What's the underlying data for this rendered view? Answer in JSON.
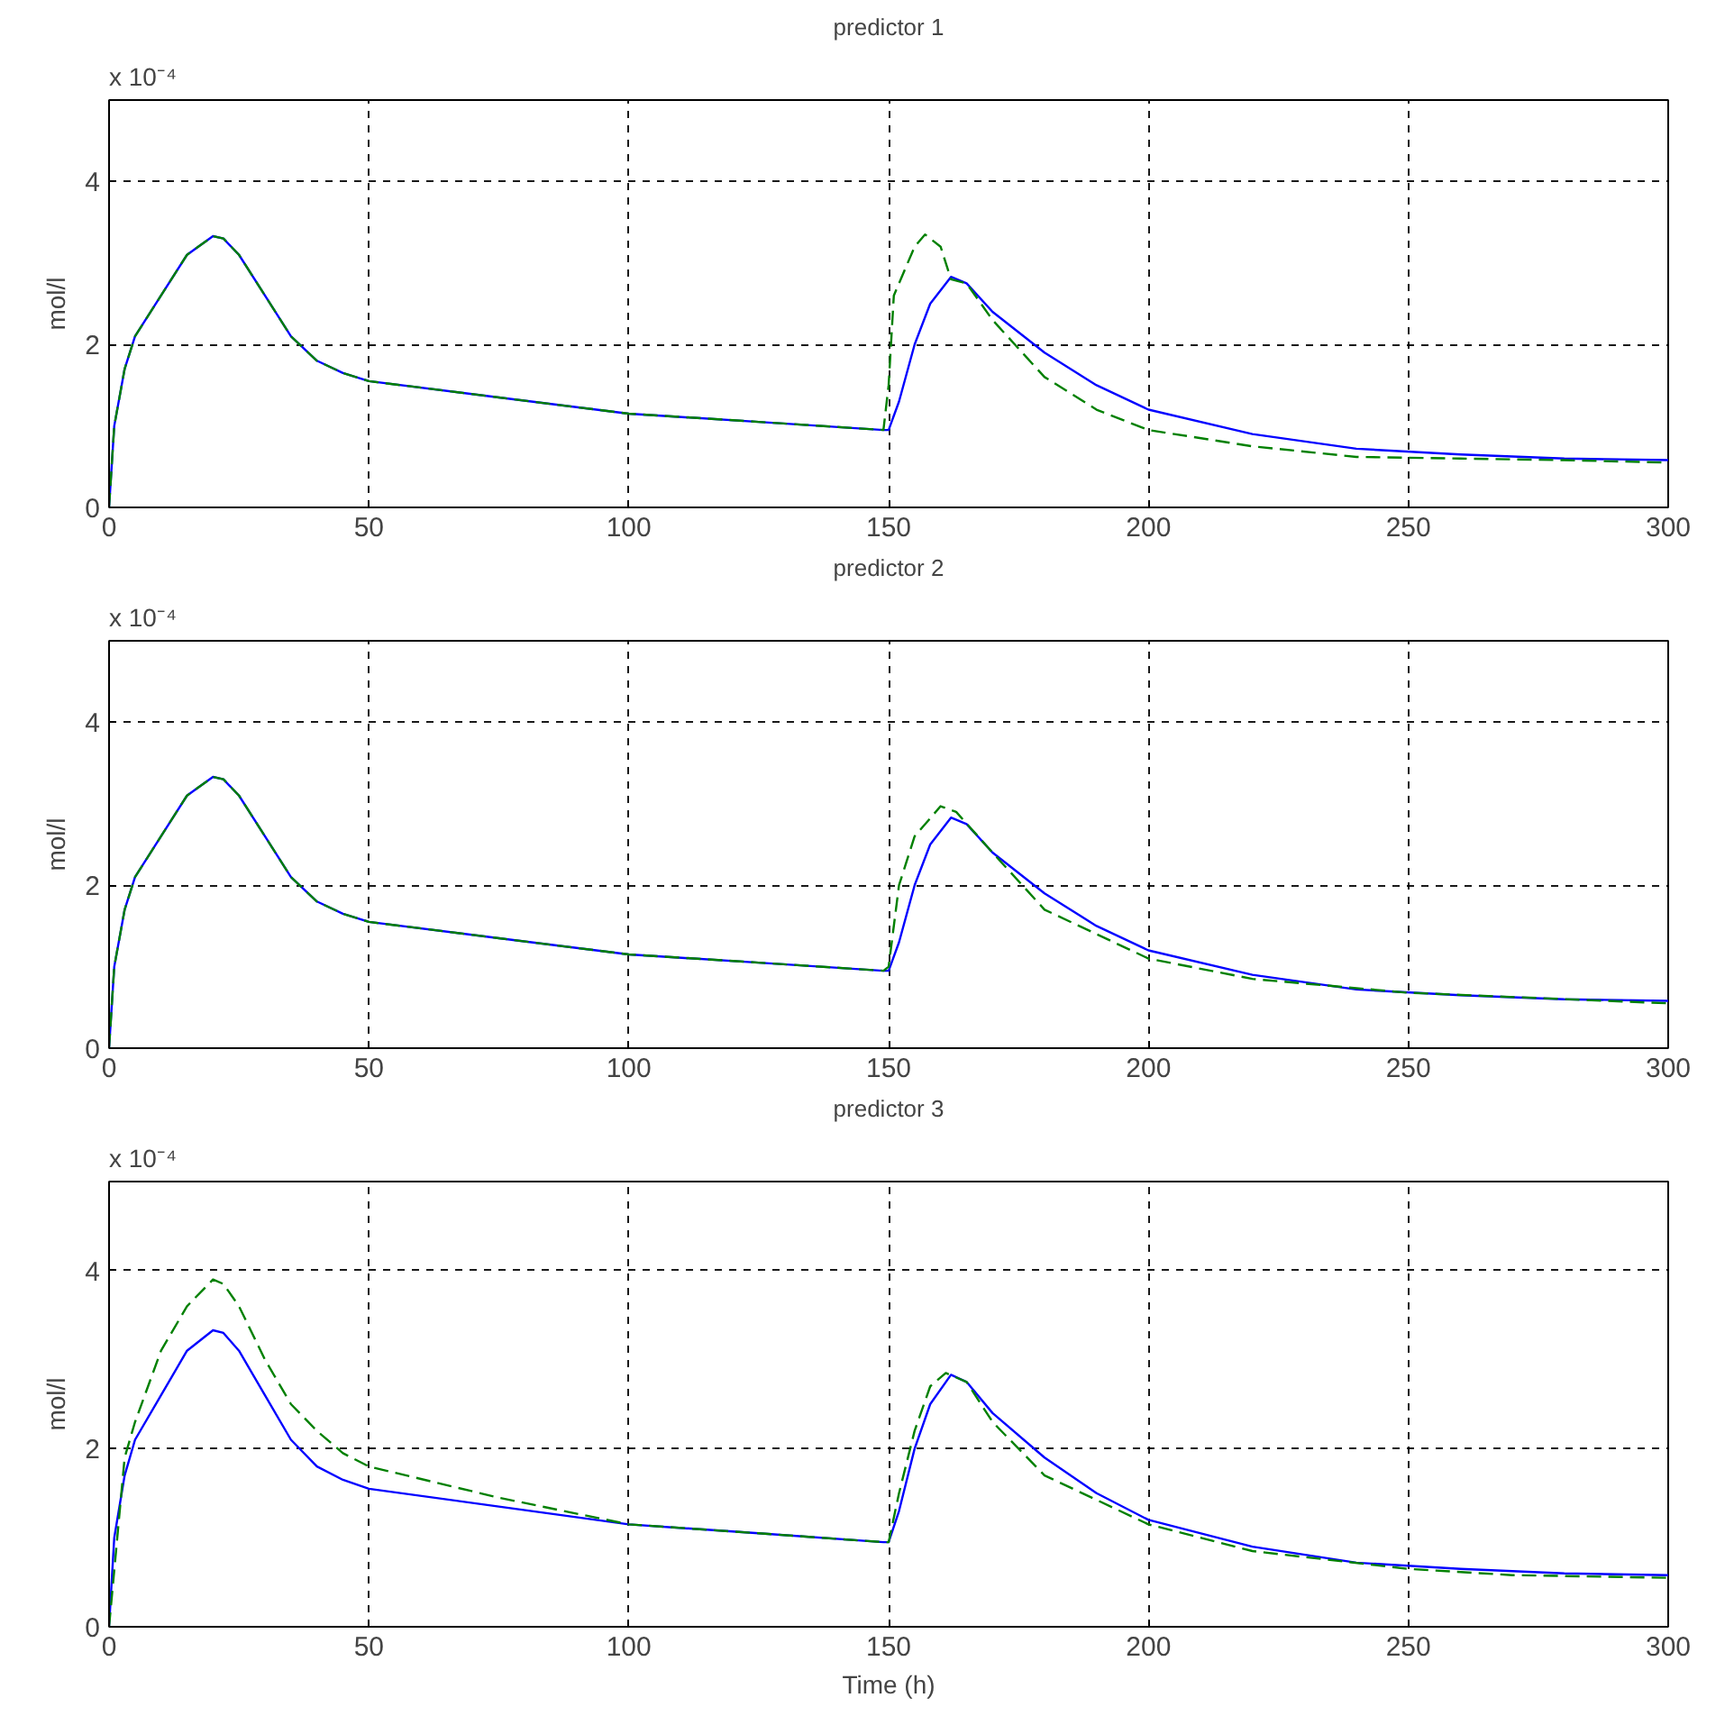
{
  "chart_data": [
    {
      "type": "line",
      "title": "predictor 1",
      "ylabel": "mol/l",
      "annotations": [
        "x 10⁻⁴"
      ],
      "xlim": [
        0,
        300
      ],
      "ylim": [
        0,
        5
      ],
      "xticks": [
        0,
        50,
        100,
        150,
        200,
        250,
        300
      ],
      "yticks": [
        0,
        2,
        4
      ],
      "grid": true,
      "series": [
        {
          "color": "#0000ff",
          "line_style": "solid",
          "x": [
            0,
            1,
            3,
            5,
            10,
            15,
            20,
            22,
            25,
            30,
            35,
            40,
            45,
            50,
            75,
            100,
            125,
            149,
            150,
            152,
            155,
            158,
            162,
            165,
            170,
            180,
            190,
            200,
            220,
            240,
            260,
            280,
            300
          ],
          "values": [
            0,
            1.0,
            1.7,
            2.1,
            2.6,
            3.1,
            3.33,
            3.3,
            3.1,
            2.6,
            2.1,
            1.8,
            1.65,
            1.55,
            1.35,
            1.15,
            1.05,
            0.95,
            0.95,
            1.3,
            2.0,
            2.5,
            2.83,
            2.75,
            2.4,
            1.9,
            1.5,
            1.2,
            0.9,
            0.72,
            0.65,
            0.6,
            0.58
          ]
        },
        {
          "color": "#008000",
          "line_style": "dashed",
          "x": [
            0,
            1,
            3,
            5,
            10,
            15,
            20,
            22,
            25,
            30,
            35,
            40,
            45,
            50,
            75,
            100,
            125,
            149,
            150,
            151,
            155,
            157,
            160,
            162,
            165,
            170,
            180,
            190,
            200,
            220,
            240,
            260,
            280,
            300
          ],
          "values": [
            0,
            1.0,
            1.7,
            2.1,
            2.6,
            3.1,
            3.33,
            3.3,
            3.1,
            2.6,
            2.1,
            1.8,
            1.65,
            1.55,
            1.35,
            1.15,
            1.05,
            0.95,
            1.5,
            2.6,
            3.2,
            3.35,
            3.2,
            2.8,
            2.75,
            2.3,
            1.6,
            1.2,
            0.95,
            0.75,
            0.62,
            0.6,
            0.58,
            0.55
          ]
        }
      ]
    },
    {
      "type": "line",
      "title": "predictor 2",
      "ylabel": "mol/l",
      "annotations": [
        "x 10⁻⁴"
      ],
      "xlim": [
        0,
        300
      ],
      "ylim": [
        0,
        5
      ],
      "xticks": [
        0,
        50,
        100,
        150,
        200,
        250,
        300
      ],
      "yticks": [
        0,
        2,
        4
      ],
      "grid": true,
      "series": [
        {
          "color": "#0000ff",
          "line_style": "solid",
          "x": [
            0,
            1,
            3,
            5,
            10,
            15,
            20,
            22,
            25,
            30,
            35,
            40,
            45,
            50,
            75,
            100,
            125,
            149,
            150,
            152,
            155,
            158,
            162,
            165,
            170,
            180,
            190,
            200,
            220,
            240,
            260,
            280,
            300
          ],
          "values": [
            0,
            1.0,
            1.7,
            2.1,
            2.6,
            3.1,
            3.33,
            3.3,
            3.1,
            2.6,
            2.1,
            1.8,
            1.65,
            1.55,
            1.35,
            1.15,
            1.05,
            0.95,
            0.95,
            1.3,
            2.0,
            2.5,
            2.83,
            2.75,
            2.4,
            1.9,
            1.5,
            1.2,
            0.9,
            0.72,
            0.65,
            0.6,
            0.58
          ]
        },
        {
          "color": "#008000",
          "line_style": "dashed",
          "x": [
            0,
            1,
            3,
            5,
            10,
            15,
            20,
            22,
            25,
            30,
            35,
            40,
            45,
            50,
            75,
            100,
            125,
            149,
            150,
            152,
            155,
            160,
            163,
            170,
            180,
            200,
            220,
            250,
            300
          ],
          "values": [
            0,
            1.0,
            1.7,
            2.1,
            2.6,
            3.1,
            3.33,
            3.3,
            3.1,
            2.6,
            2.1,
            1.8,
            1.65,
            1.55,
            1.35,
            1.15,
            1.05,
            0.95,
            1.0,
            2.0,
            2.6,
            2.97,
            2.9,
            2.4,
            1.7,
            1.1,
            0.85,
            0.68,
            0.55
          ]
        }
      ]
    },
    {
      "type": "line",
      "title": "predictor 3",
      "xlabel": "Time (h)",
      "ylabel": "mol/l",
      "annotations": [
        "x 10⁻⁴"
      ],
      "xlim": [
        0,
        300
      ],
      "ylim": [
        0,
        5
      ],
      "xticks": [
        0,
        50,
        100,
        150,
        200,
        250,
        300
      ],
      "yticks": [
        0,
        2,
        4
      ],
      "grid": true,
      "series": [
        {
          "color": "#0000ff",
          "line_style": "solid",
          "x": [
            0,
            1,
            3,
            5,
            10,
            15,
            20,
            22,
            25,
            30,
            35,
            40,
            45,
            50,
            75,
            100,
            125,
            149,
            150,
            152,
            155,
            158,
            162,
            165,
            170,
            180,
            190,
            200,
            220,
            240,
            260,
            280,
            300
          ],
          "values": [
            0,
            1.0,
            1.7,
            2.1,
            2.6,
            3.1,
            3.33,
            3.3,
            3.1,
            2.6,
            2.1,
            1.8,
            1.65,
            1.55,
            1.35,
            1.15,
            1.05,
            0.95,
            0.95,
            1.3,
            2.0,
            2.5,
            2.83,
            2.75,
            2.4,
            1.9,
            1.5,
            1.2,
            0.9,
            0.72,
            0.65,
            0.6,
            0.58
          ]
        },
        {
          "color": "#008000",
          "line_style": "dashed",
          "x": [
            0,
            3,
            5,
            10,
            15,
            20,
            22,
            25,
            30,
            35,
            40,
            45,
            50,
            75,
            100,
            125,
            149,
            150,
            152,
            155,
            158,
            161,
            165,
            170,
            180,
            200,
            220,
            250,
            270,
            300
          ],
          "values": [
            0,
            1.9,
            2.3,
            3.1,
            3.6,
            3.9,
            3.85,
            3.6,
            3.0,
            2.5,
            2.2,
            1.95,
            1.8,
            1.45,
            1.15,
            1.05,
            0.95,
            0.95,
            1.5,
            2.2,
            2.7,
            2.85,
            2.75,
            2.3,
            1.7,
            1.15,
            0.85,
            0.65,
            0.58,
            0.55
          ]
        }
      ]
    }
  ]
}
